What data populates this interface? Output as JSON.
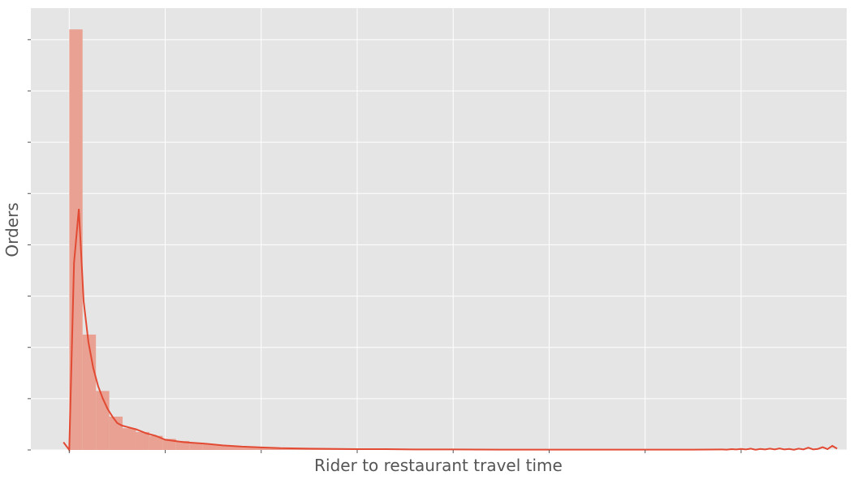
{
  "chart_data": {
    "type": "histogram",
    "title": "",
    "xlabel": "Rider to restaurant travel time",
    "ylabel": "Orders",
    "tick_labels_visible": false,
    "grid": true,
    "style": "ggplot",
    "colors": {
      "background": "#e5e5e5",
      "grid": "#ffffff",
      "bar": "#e8a192",
      "kde_line": "#e24a33",
      "text": "#555555",
      "tick": "#555555"
    },
    "xlim": [
      -4,
      81
    ],
    "ylim": [
      0,
      0.1723
    ],
    "x_ticks": [
      0,
      10,
      20,
      30,
      40,
      50,
      60,
      70
    ],
    "y_ticks": [
      0,
      0.02,
      0.04,
      0.06,
      0.08,
      0.1,
      0.12,
      0.14,
      0.16
    ],
    "bin_width": 1.39,
    "bins": [
      {
        "x0": 0.0,
        "density": 0.164
      },
      {
        "x0": 1.39,
        "density": 0.045
      },
      {
        "x0": 2.78,
        "density": 0.023
      },
      {
        "x0": 4.17,
        "density": 0.013
      },
      {
        "x0": 5.56,
        "density": 0.0085
      },
      {
        "x0": 6.95,
        "density": 0.007
      },
      {
        "x0": 8.34,
        "density": 0.0055
      },
      {
        "x0": 9.73,
        "density": 0.0043
      },
      {
        "x0": 11.12,
        "density": 0.0035
      },
      {
        "x0": 12.51,
        "density": 0.0028
      },
      {
        "x0": 13.9,
        "density": 0.0023
      },
      {
        "x0": 15.29,
        "density": 0.0018
      },
      {
        "x0": 16.68,
        "density": 0.0014
      },
      {
        "x0": 18.07,
        "density": 0.0011
      },
      {
        "x0": 19.46,
        "density": 0.0009
      },
      {
        "x0": 20.85,
        "density": 0.0007
      },
      {
        "x0": 22.24,
        "density": 0.0006
      },
      {
        "x0": 23.63,
        "density": 0.0005
      },
      {
        "x0": 25.02,
        "density": 0.0004
      },
      {
        "x0": 26.41,
        "density": 0.0003
      },
      {
        "x0": 27.8,
        "density": 0.0003
      },
      {
        "x0": 29.19,
        "density": 0.0002
      },
      {
        "x0": 30.58,
        "density": 0.0002
      },
      {
        "x0": 31.97,
        "density": 0.0002
      },
      {
        "x0": 33.36,
        "density": 0.0002
      },
      {
        "x0": 34.75,
        "density": 0.00015
      },
      {
        "x0": 36.14,
        "density": 0.00015
      },
      {
        "x0": 37.53,
        "density": 0.0001
      },
      {
        "x0": 38.92,
        "density": 0.0001
      },
      {
        "x0": 40.31,
        "density": 0.0001
      },
      {
        "x0": 41.7,
        "density": 0.0001
      },
      {
        "x0": 43.09,
        "density": 0.0001
      },
      {
        "x0": 44.48,
        "density": 0.0001
      },
      {
        "x0": 45.87,
        "density": 0.0001
      },
      {
        "x0": 47.26,
        "density": 0.0001
      },
      {
        "x0": 48.65,
        "density": 0.0001
      },
      {
        "x0": 50.04,
        "density": 0.0001
      },
      {
        "x0": 51.43,
        "density": 0.0001
      },
      {
        "x0": 52.82,
        "density": 0.0001
      },
      {
        "x0": 54.21,
        "density": 0.0001
      },
      {
        "x0": 55.6,
        "density": 0.0001
      },
      {
        "x0": 56.99,
        "density": 0.0001
      },
      {
        "x0": 58.38,
        "density": 0.0001
      },
      {
        "x0": 59.77,
        "density": 0.0001
      },
      {
        "x0": 61.16,
        "density": 0.0001
      },
      {
        "x0": 62.55,
        "density": 0.0001
      },
      {
        "x0": 63.94,
        "density": 0.0001
      },
      {
        "x0": 65.33,
        "density": 0.0001
      },
      {
        "x0": 66.72,
        "density": 0.0001
      },
      {
        "x0": 68.11,
        "density": 0.0001
      },
      {
        "x0": 69.5,
        "density": 0.0001
      }
    ],
    "kde": {
      "x": [
        -0.6,
        0.0,
        0.5,
        1.0,
        1.5,
        2.0,
        2.5,
        3.0,
        3.5,
        4.0,
        4.5,
        5.0,
        5.5,
        6.0,
        7.0,
        8.0,
        9.0,
        10.0,
        11.0,
        12.0,
        14.0,
        16.0,
        18.0,
        20.0,
        22.0,
        25.0,
        28.0,
        30.0,
        33.0,
        36.0,
        40.0,
        45.0,
        50.0,
        55.0,
        60.0,
        65.0,
        68.0,
        68.5,
        69.0,
        69.5,
        70.0,
        70.5,
        71.0,
        71.5,
        72.0,
        72.5,
        73.0,
        73.5,
        74.0,
        74.5,
        75.0,
        75.5,
        76.0,
        76.5,
        77.0,
        77.5,
        78.0,
        78.5,
        79.0,
        79.5,
        80.0
      ],
      "y": [
        0.003,
        0.0,
        0.073,
        0.094,
        0.058,
        0.042,
        0.032,
        0.025,
        0.02,
        0.016,
        0.013,
        0.0105,
        0.0095,
        0.009,
        0.008,
        0.0065,
        0.0055,
        0.004,
        0.0035,
        0.003,
        0.0025,
        0.0018,
        0.0013,
        0.001,
        0.0007,
        0.0005,
        0.0004,
        0.0003,
        0.0003,
        0.0002,
        0.0002,
        0.0001,
        0.0001,
        0.0001,
        0.0001,
        0.0001,
        0.0002,
        0.0001,
        0.0003,
        0.0002,
        0.0004,
        0.0002,
        0.0005,
        0.0001,
        0.0004,
        0.0002,
        0.0005,
        0.0002,
        0.0006,
        0.0002,
        0.0004,
        0.0001,
        0.0005,
        0.0002,
        0.0009,
        0.0002,
        0.0004,
        0.0011,
        0.0003,
        0.0016,
        0.0005
      ]
    }
  }
}
